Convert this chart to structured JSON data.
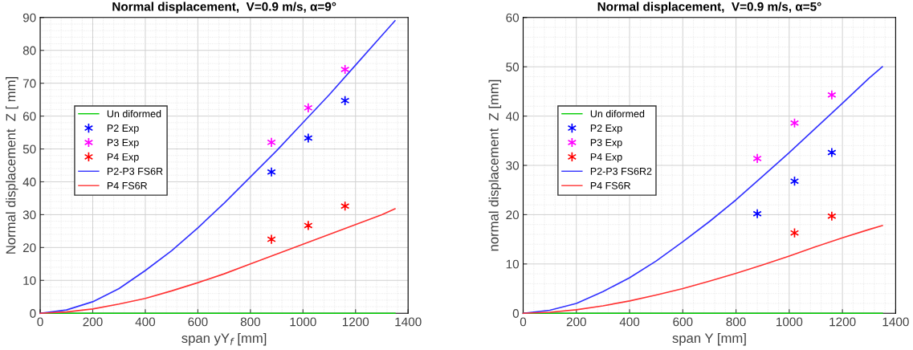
{
  "chart_data": [
    {
      "type": "line",
      "title": "Normal displacement,  V=0.9 m/s, α=9°",
      "xlabel": "span yY$_{f}$ [mm]",
      "ylabel": "Normal displacement  Z [ mm]",
      "xlim": [
        0,
        1400
      ],
      "ylim": [
        0,
        90
      ],
      "xticks": [
        0,
        200,
        400,
        600,
        800,
        1000,
        1200,
        1400
      ],
      "yticks": [
        0,
        10,
        20,
        30,
        40,
        50,
        60,
        70,
        80,
        90
      ],
      "grid": true,
      "legend": "left",
      "series": [
        {
          "name": "Un diformed",
          "color": "#00cc00",
          "x": [
            0,
            1350
          ],
          "values": [
            0,
            0
          ]
        },
        {
          "name": "P2 Exp",
          "color": "#0000ff",
          "type": "scatter",
          "marker": "cross",
          "x": [
            880,
            1020,
            1160
          ],
          "values": [
            43,
            53.3,
            64.7
          ]
        },
        {
          "name": "P3 Exp",
          "color": "#ff00ff",
          "type": "scatter",
          "marker": "cross",
          "x": [
            880,
            1020,
            1160
          ],
          "values": [
            52,
            62.5,
            74.2
          ]
        },
        {
          "name": "P4 Exp",
          "color": "#ff0000",
          "type": "scatter",
          "marker": "cross",
          "x": [
            880,
            1020,
            1160
          ],
          "values": [
            22.5,
            26.7,
            32.6
          ]
        },
        {
          "name": "P2-P3 FS6R",
          "color": "#3333ff",
          "x": [
            0,
            100,
            200,
            300,
            400,
            500,
            600,
            700,
            800,
            900,
            1000,
            1100,
            1200,
            1300,
            1350
          ],
          "values": [
            0,
            1,
            3.5,
            7.5,
            13,
            19,
            26,
            33.5,
            41.5,
            49.5,
            58,
            66.5,
            75.5,
            84.5,
            89
          ]
        },
        {
          "name": "P4 FS6R",
          "color": "#ff3333",
          "x": [
            0,
            100,
            200,
            300,
            400,
            500,
            600,
            700,
            800,
            900,
            1000,
            1100,
            1200,
            1300,
            1350
          ],
          "values": [
            0,
            0.4,
            1.3,
            2.8,
            4.5,
            6.8,
            9.3,
            12,
            15,
            18,
            21,
            24,
            27,
            30,
            31.8
          ]
        }
      ]
    },
    {
      "type": "line",
      "title": "Normal displacement,  V=0.9 m/s, α=5°",
      "xlabel": "span Y [mm]",
      "ylabel": "normal displacement  Z [mm]",
      "xlim": [
        0,
        1400
      ],
      "ylim": [
        0,
        60
      ],
      "xticks": [
        0,
        200,
        400,
        600,
        800,
        1000,
        1200,
        1400
      ],
      "yticks": [
        0,
        10,
        20,
        30,
        40,
        50,
        60
      ],
      "grid": true,
      "legend": "left",
      "series": [
        {
          "name": "Un diformed",
          "color": "#00cc00",
          "x": [
            0,
            1350
          ],
          "values": [
            0,
            0
          ]
        },
        {
          "name": "P2 Exp",
          "color": "#0000ff",
          "type": "scatter",
          "marker": "cross",
          "x": [
            880,
            1020,
            1160
          ],
          "values": [
            20.2,
            26.8,
            32.6
          ]
        },
        {
          "name": "P3 Exp",
          "color": "#ff00ff",
          "type": "scatter",
          "marker": "cross",
          "x": [
            880,
            1020,
            1160
          ],
          "values": [
            31.4,
            38.6,
            44.3
          ]
        },
        {
          "name": "P4 Exp",
          "color": "#ff0000",
          "type": "scatter",
          "marker": "cross",
          "x": [
            1020,
            1160
          ],
          "values": [
            16.3,
            19.7
          ]
        },
        {
          "name": "P2-P3 FS6R2",
          "color": "#3333ff",
          "x": [
            0,
            100,
            200,
            300,
            400,
            500,
            600,
            700,
            800,
            900,
            1000,
            1100,
            1200,
            1300,
            1350
          ],
          "values": [
            0,
            0.6,
            2,
            4.4,
            7.2,
            10.6,
            14.5,
            18.6,
            23,
            27.8,
            32.6,
            37.6,
            42.6,
            47.7,
            50
          ]
        },
        {
          "name": "P4 FS6R",
          "color": "#ff3333",
          "x": [
            0,
            100,
            200,
            300,
            400,
            500,
            600,
            700,
            800,
            900,
            1000,
            1100,
            1200,
            1300,
            1350
          ],
          "values": [
            0,
            0.2,
            0.7,
            1.5,
            2.5,
            3.7,
            5,
            6.5,
            8.1,
            9.8,
            11.6,
            13.5,
            15.3,
            17,
            17.8
          ]
        }
      ]
    }
  ]
}
